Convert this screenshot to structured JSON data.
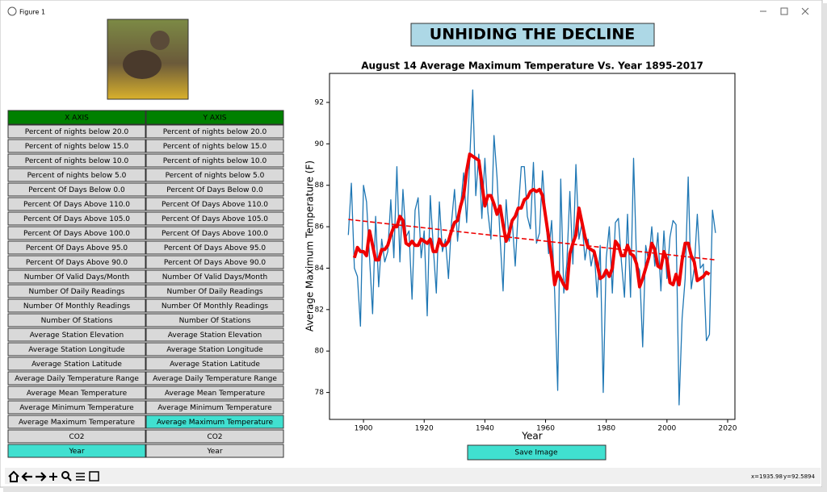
{
  "window": {
    "title": "Figure 1"
  },
  "banner": "UNHIDING THE DECLINE",
  "x_axis_panel": {
    "header": "X AXIS",
    "selected": 22,
    "items": [
      "Percent of nights below 20.0",
      "Percent of nights below 15.0",
      "Percent of nights below 10.0",
      "Percent of nights below 5.0",
      "Percent Of Days Below 0.0",
      "Percent Of Days Above 110.0",
      "Percent Of Days Above 105.0",
      "Percent Of Days Above 100.0",
      "Percent Of Days Above 95.0",
      "Percent Of Days Above 90.0",
      "Number Of Valid Days/Month",
      "Number Of Daily Readings",
      "Number Of Monthly Readings",
      "Number Of Stations",
      "Average Station Elevation",
      "Average Station Longitude",
      "Average Station Latitude",
      "Average Daily Temperature Range",
      "Average Mean Temperature",
      "Average Minimum Temperature",
      "Average Maximum Temperature",
      "CO2",
      "Year"
    ]
  },
  "y_axis_panel": {
    "header": "Y AXIS",
    "selected": 20,
    "items": [
      "Percent of nights below 20.0",
      "Percent of nights below 15.0",
      "Percent of nights below 10.0",
      "Percent of nights below 5.0",
      "Percent Of Days Below 0.0",
      "Percent Of Days Above 110.0",
      "Percent Of Days Above 105.0",
      "Percent Of Days Above 100.0",
      "Percent Of Days Above 95.0",
      "Percent Of Days Above 90.0",
      "Number Of Valid Days/Month",
      "Number Of Daily Readings",
      "Number Of Monthly Readings",
      "Number Of Stations",
      "Average Station Elevation",
      "Average Station Longitude",
      "Average Station Latitude",
      "Average Daily Temperature Range",
      "Average Mean Temperature",
      "Average Minimum Temperature",
      "Average Maximum Temperature",
      "CO2",
      "Year"
    ]
  },
  "chart_data": {
    "type": "line",
    "title": "August 14 Average Maximum Temperature Vs. Year 1895-2017",
    "xlabel": "Year",
    "ylabel": "Average Maximum Temperature (F)",
    "xlim": [
      1888.8,
      2022.4
    ],
    "xticks": [
      1900,
      1920,
      1940,
      1960,
      1980,
      2000,
      2020
    ],
    "ylim": [
      76.7,
      93.4
    ],
    "yticks": [
      78,
      80,
      82,
      84,
      86,
      88,
      90,
      92
    ],
    "x": [
      1895,
      1896,
      1897,
      1898,
      1899,
      1900,
      1901,
      1902,
      1903,
      1904,
      1905,
      1906,
      1907,
      1908,
      1909,
      1910,
      1911,
      1912,
      1913,
      1914,
      1915,
      1916,
      1917,
      1918,
      1919,
      1920,
      1921,
      1922,
      1923,
      1924,
      1925,
      1926,
      1927,
      1928,
      1929,
      1930,
      1931,
      1932,
      1933,
      1934,
      1935,
      1936,
      1937,
      1938,
      1939,
      1940,
      1941,
      1942,
      1943,
      1944,
      1945,
      1946,
      1947,
      1948,
      1949,
      1950,
      1951,
      1952,
      1953,
      1954,
      1955,
      1956,
      1957,
      1958,
      1959,
      1960,
      1961,
      1962,
      1963,
      1964,
      1965,
      1966,
      1967,
      1968,
      1969,
      1970,
      1971,
      1972,
      1973,
      1974,
      1975,
      1976,
      1977,
      1978,
      1979,
      1980,
      1981,
      1982,
      1983,
      1984,
      1985,
      1986,
      1987,
      1988,
      1989,
      1990,
      1991,
      1992,
      1993,
      1994,
      1995,
      1996,
      1997,
      1998,
      1999,
      2000,
      2001,
      2002,
      2003,
      2004,
      2005,
      2006,
      2007,
      2008,
      2009,
      2010,
      2011,
      2012,
      2013,
      2014,
      2015,
      2016
    ],
    "series": [
      {
        "color": "#1f77b4",
        "width": 1.3,
        "values": [
          85.6,
          88.1,
          84,
          83.6,
          81.2,
          88,
          87.2,
          84.5,
          81.8,
          86.5,
          83.1,
          85.4,
          84.3,
          84.8,
          87.3,
          84.5,
          88.9,
          84.3,
          87.8,
          85.5,
          85.8,
          82.5,
          86.8,
          87.4,
          84.5,
          85.8,
          81.7,
          87.5,
          85,
          82.8,
          87.2,
          84.8,
          85.4,
          83.5,
          86.2,
          87.8,
          85.3,
          87,
          88.6,
          86.2,
          89.2,
          92.6,
          87.5,
          89.5,
          86.4,
          89.3,
          86.7,
          85.4,
          90.4,
          88.4,
          85.5,
          82.9,
          87.3,
          85.3,
          86.3,
          84.1,
          86.8,
          88.9,
          88.9,
          86.5,
          85.9,
          89.1,
          85.2,
          85.7,
          88.7,
          86.5,
          84.7,
          86.3,
          82.8,
          78.1,
          88.3,
          82.8,
          84.2,
          87.7,
          84.2,
          89,
          85.4,
          86.2,
          84.4,
          85.4,
          84.1,
          84.9,
          82.6,
          85.1,
          78,
          84.5,
          86,
          82.8,
          86.2,
          86.4,
          84.3,
          82.6,
          86.6,
          82.6,
          89.3,
          84.2,
          83.9,
          80.2,
          85.1,
          84.3,
          86,
          84.1,
          85.7,
          82.9,
          85.8,
          83.5,
          85.5,
          86.3,
          86.1,
          77.4,
          81.6,
          83.5,
          88.4,
          83,
          84,
          86.6,
          84,
          84.2,
          80.5,
          80.8,
          86.8,
          85.7
        ]
      },
      {
        "color": "#ee0000",
        "width": 4,
        "values": [
          null,
          null,
          84.5,
          85,
          84.8,
          84.8,
          84.6,
          85.8,
          85.1,
          84.4,
          84.4,
          84.9,
          84.9,
          85.1,
          85.6,
          86,
          86,
          86.5,
          86.3,
          85.2,
          85.1,
          85.3,
          85.1,
          85.1,
          85.4,
          85.3,
          85.2,
          85.4,
          84.8,
          84.8,
          85.4,
          85.1,
          85.1,
          85.3,
          85.8,
          86.2,
          86.3,
          87,
          87.5,
          88.7,
          89.5,
          89.4,
          89.3,
          89.2,
          88.1,
          87,
          87.5,
          87.5,
          87.1,
          86.6,
          87,
          86.1,
          85.3,
          85.7,
          86.3,
          86.5,
          86.9,
          86.9,
          87.3,
          87.4,
          87.7,
          87.8,
          87.7,
          87.8,
          87.5,
          86.5,
          85.5,
          84.5,
          83.2,
          83.8,
          83.5,
          83.2,
          83,
          84.7,
          85.2,
          85.6,
          86.9,
          86.2,
          85.5,
          85,
          84.9,
          84.8,
          84.2,
          83.5,
          83.6,
          83.9,
          83.6,
          84,
          85.3,
          85.1,
          84.6,
          84.6,
          85.1,
          84.7,
          84.6,
          84.2,
          83.1,
          83.5,
          84,
          84.5,
          85.2,
          84.9,
          84.1,
          84,
          84.8,
          84.4,
          83.3,
          83.2,
          83.7,
          83.2,
          84.4,
          85.2,
          85.2,
          84.6,
          84.3,
          83.4,
          83.5,
          83.6,
          83.8,
          83.7,
          null,
          null
        ]
      }
    ],
    "trend": {
      "color": "#ee0000",
      "dashed": true,
      "x": [
        1895,
        2016
      ],
      "values": [
        86.35,
        84.4
      ]
    }
  },
  "save_button": "Save Image",
  "status": {
    "x": "x=1935.98",
    "y": "y=92.5894"
  }
}
